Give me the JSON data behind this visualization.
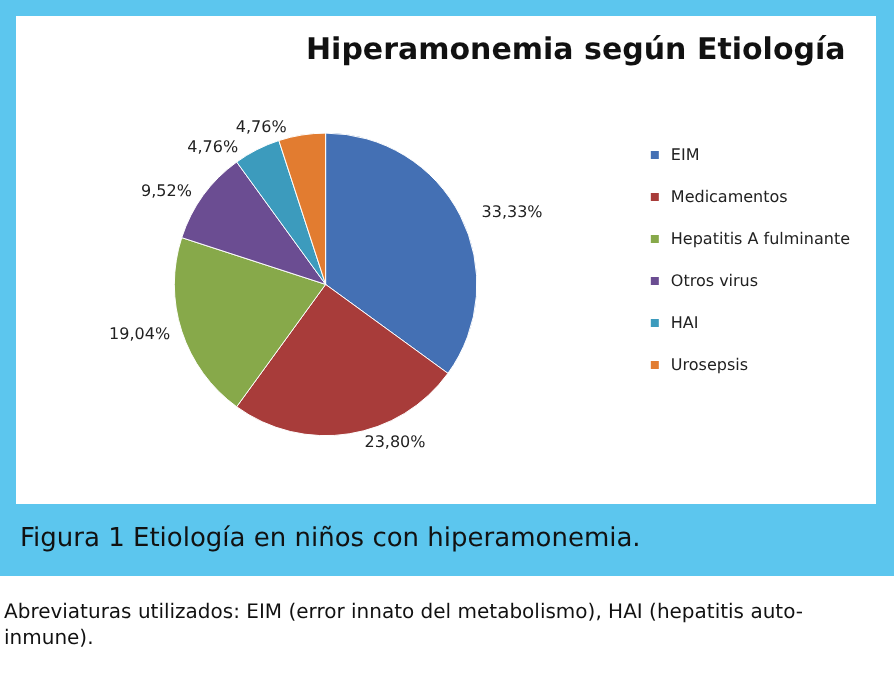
{
  "chart_data": {
    "type": "pie",
    "title": "Hiperamonemia según Etiología",
    "categories": [
      "EIM",
      "Medicamentos",
      "Hepatitis A fulminante",
      "Otros virus",
      "HAI",
      "Urosepsis"
    ],
    "values": [
      33.33,
      23.8,
      19.04,
      9.52,
      4.76,
      4.76
    ],
    "colors": [
      "#4470b4",
      "#a83c3a",
      "#87a94a",
      "#6b4d92",
      "#3c9bbd",
      "#e27c30"
    ],
    "value_labels": [
      "33,33%",
      "23,80%",
      "19,04%",
      "9,52%",
      "4,76%",
      "4,76%"
    ],
    "legend": "right",
    "annotations": [
      "Figura 1 Etiología en niños con hiperamonemia.",
      "Abreviaturas utilizados: EIM (error innato del metabolismo), HAI (hepatitis auto-inmune)."
    ]
  }
}
